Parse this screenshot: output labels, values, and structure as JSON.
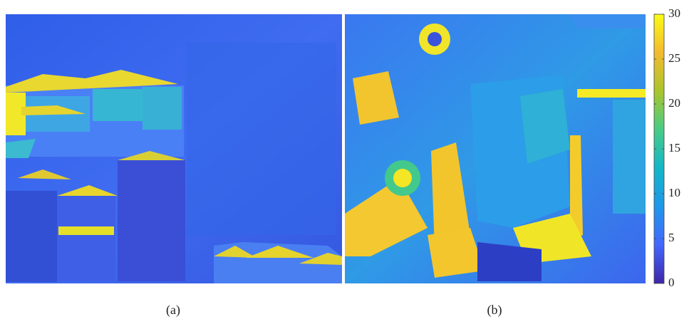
{
  "chart_data": {
    "type": "heatmap",
    "panels": [
      "(a)",
      "(b)"
    ],
    "colormap": [
      "#3e26a8",
      "#4367fd",
      "#1f97ea",
      "#14b7c8",
      "#48cb86",
      "#aac52c",
      "#f4ba2f",
      "#f9fb15"
    ],
    "colorbar": {
      "ylim": [
        0,
        30
      ],
      "yticks": [
        0,
        5,
        10,
        15,
        20,
        25,
        30
      ]
    }
  }
}
